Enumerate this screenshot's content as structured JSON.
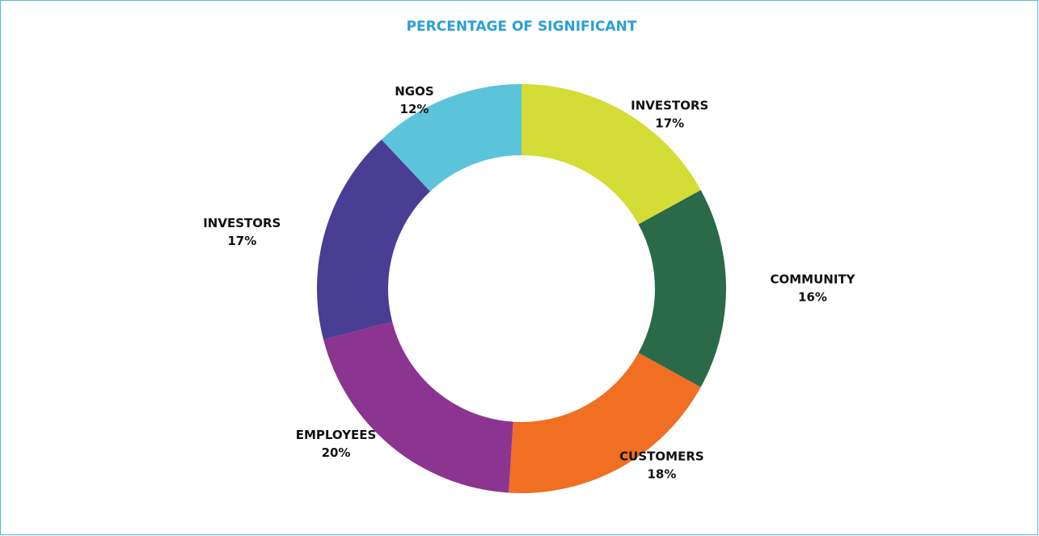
{
  "chart_data": {
    "type": "donut",
    "title": "PERCENTAGE OF SIGNIFICANT",
    "categories": [
      "INVESTORS",
      "COMMUNITY",
      "CUSTOMERS",
      "EMPLOYEES",
      "INVESTORS",
      "NGOS"
    ],
    "values": [
      17,
      16,
      18,
      20,
      17,
      12
    ],
    "value_labels": [
      "17%",
      "16%",
      "18%",
      "20%",
      "17%",
      "12%"
    ],
    "colors": [
      "#d4dc36",
      "#2a6a48",
      "#f06f22",
      "#8b3590",
      "#4a3d94",
      "#5bc4db"
    ]
  }
}
